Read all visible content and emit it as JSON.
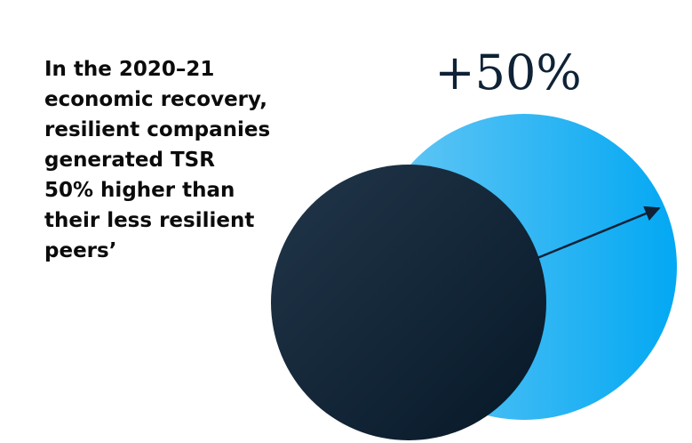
{
  "text": {
    "lines": [
      "In the 2020–21",
      "economic recovery,",
      "resilient companies",
      "generated TSR",
      "50% higher than",
      "their less resilient",
      "peers’"
    ]
  },
  "diagram": {
    "label": "+50%"
  }
}
